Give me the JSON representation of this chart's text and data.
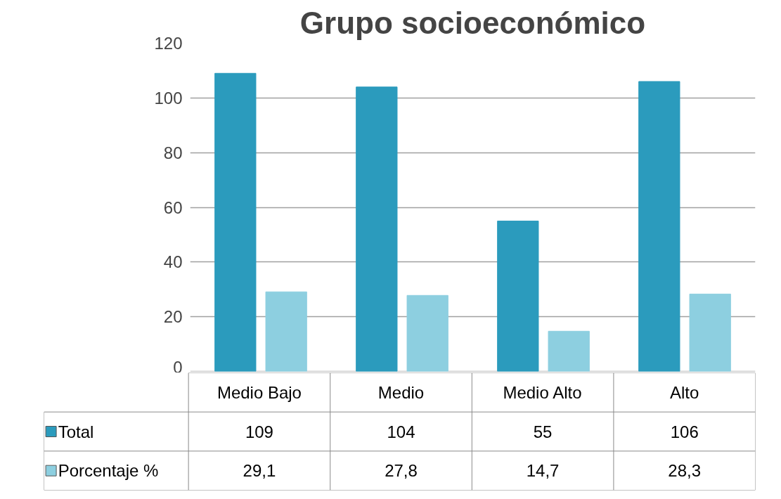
{
  "chart_data": {
    "type": "bar",
    "title": "Grupo socioeconómico",
    "categories": [
      "Medio Bajo",
      "Medio",
      "Medio Alto",
      "Alto"
    ],
    "series": [
      {
        "name": "Total",
        "color": "#2b9bbd",
        "values": [
          109,
          104,
          55,
          106
        ],
        "value_labels": [
          "109",
          "104",
          "55",
          "106"
        ]
      },
      {
        "name": "Porcentaje %",
        "color": "#8dcfe0",
        "values": [
          29.1,
          27.8,
          14.7,
          28.3
        ],
        "value_labels": [
          "29,1",
          "27,8",
          "14,7",
          "28,3"
        ]
      }
    ],
    "ylim": [
      0,
      120
    ],
    "yticks": [
      0,
      20,
      40,
      60,
      80,
      100,
      120
    ],
    "grid": "y",
    "legend": "bottom"
  }
}
